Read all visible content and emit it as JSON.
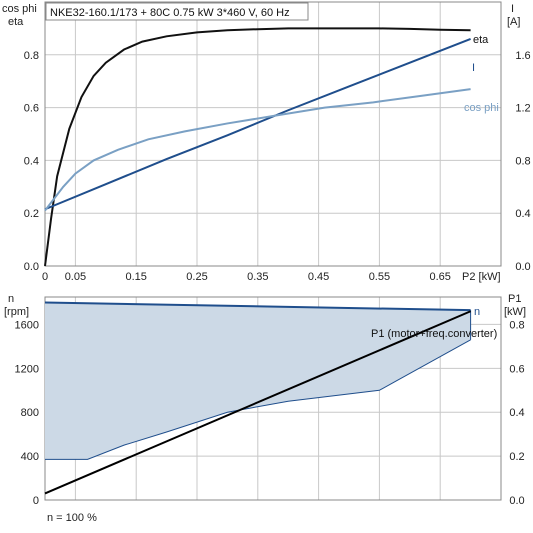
{
  "chart_data": [
    {
      "type": "line",
      "title": "NKE32-160.1/173 + 80C   0.75 kW   3*460 V, 60 Hz",
      "left_axis": {
        "label_line1": "cos phi",
        "label_line2": "eta",
        "ylim": [
          0,
          1.0
        ],
        "ticks": [
          "0.0",
          "0.2",
          "0.4",
          "0.6",
          "0.8"
        ],
        "tick_values": [
          0,
          0.2,
          0.4,
          0.6,
          0.8
        ]
      },
      "right_axis": {
        "label_line1": "I",
        "label_line2": "[A]",
        "ylim": [
          0,
          2.0
        ],
        "ticks": [
          "0.0",
          "0.4",
          "0.8",
          "1.2",
          "1.6"
        ],
        "tick_values": [
          0,
          0.4,
          0.8,
          1.2,
          1.6
        ]
      },
      "x_axis": {
        "label": "P2 [kW]",
        "xlim": [
          0,
          0.75
        ],
        "ticks": [
          "0",
          "0.05",
          "0.15",
          "0.25",
          "0.35",
          "0.45",
          "0.55",
          "0.65"
        ],
        "tick_values": [
          0,
          0.05,
          0.15,
          0.25,
          0.35,
          0.45,
          0.55,
          0.65
        ]
      },
      "grid": true,
      "series": [
        {
          "name": "eta",
          "axis": "left",
          "color": "#111111",
          "x": [
            0,
            0.01,
            0.02,
            0.04,
            0.06,
            0.08,
            0.1,
            0.13,
            0.16,
            0.2,
            0.25,
            0.3,
            0.35,
            0.4,
            0.45,
            0.5,
            0.55,
            0.6,
            0.65,
            0.7
          ],
          "y": [
            0,
            0.18,
            0.34,
            0.52,
            0.64,
            0.72,
            0.77,
            0.82,
            0.85,
            0.87,
            0.885,
            0.893,
            0.897,
            0.9,
            0.9,
            0.9,
            0.9,
            0.898,
            0.895,
            0.893
          ]
        },
        {
          "name": "I",
          "axis": "right",
          "color": "#1f4e8c",
          "x": [
            0,
            0.1,
            0.2,
            0.3,
            0.4,
            0.5,
            0.6,
            0.7
          ],
          "y": [
            0.43,
            0.62,
            0.81,
            0.99,
            1.18,
            1.36,
            1.54,
            1.72
          ]
        },
        {
          "name": "cos phi",
          "axis": "left",
          "color": "#7aa0c4",
          "x": [
            0,
            0.01,
            0.03,
            0.05,
            0.08,
            0.12,
            0.17,
            0.23,
            0.3,
            0.38,
            0.46,
            0.54,
            0.62,
            0.7
          ],
          "y": [
            0.21,
            0.24,
            0.3,
            0.35,
            0.4,
            0.44,
            0.48,
            0.51,
            0.54,
            0.57,
            0.6,
            0.62,
            0.645,
            0.67
          ]
        }
      ]
    },
    {
      "type": "area",
      "left_axis": {
        "label_line1": "n",
        "label_line2": "[rpm]",
        "ylim": [
          0,
          1850
        ],
        "ticks": [
          "0",
          "400",
          "800",
          "1200",
          "1600"
        ],
        "tick_values": [
          0,
          400,
          800,
          1200,
          1600
        ]
      },
      "right_axis": {
        "label_line1": "P1",
        "label_line2": "[kW]",
        "ylim": [
          0,
          0.925
        ],
        "ticks": [
          "0.0",
          "0.2",
          "0.4",
          "0.6",
          "0.8"
        ],
        "tick_values": [
          0,
          0.2,
          0.4,
          0.6,
          0.8
        ]
      },
      "xlim": [
        0,
        0.75
      ],
      "grid": true,
      "area": {
        "upper_x": [
          0,
          0.7
        ],
        "upper_y": [
          1800,
          1730
        ],
        "lower_x": [
          0,
          0.07,
          0.13,
          0.2,
          0.3,
          0.4,
          0.55,
          0.7
        ],
        "lower_y": [
          370,
          370,
          500,
          620,
          800,
          900,
          1000,
          1460
        ],
        "fill": "#ccd9e6",
        "stroke": "#1f4e8c"
      },
      "series": [
        {
          "name": "n",
          "axis": "left",
          "color": "#1f4e8c",
          "x": [
            0,
            0.7
          ],
          "y": [
            1800,
            1730
          ]
        },
        {
          "name": "P1 (motor+freq.converter)",
          "axis": "right",
          "color": "#000000",
          "x": [
            0,
            0.7
          ],
          "y": [
            0.03,
            0.86
          ]
        }
      ],
      "footnote": "n = 100 %"
    }
  ]
}
